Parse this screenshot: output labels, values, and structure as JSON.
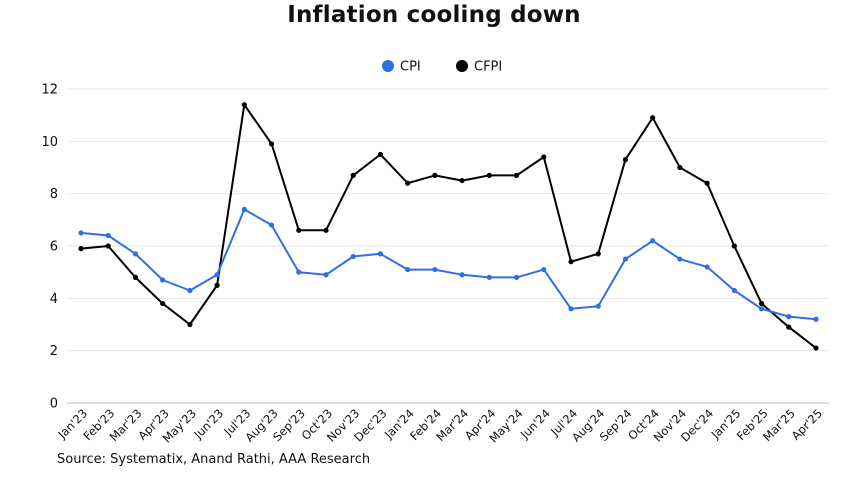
{
  "chart_data": {
    "type": "line",
    "title": "Inflation cooling down",
    "xlabel": "",
    "ylabel": "",
    "ylim": [
      0,
      12
    ],
    "yticks": [
      "0",
      "2",
      "4",
      "6",
      "8",
      "10",
      "12"
    ],
    "grid": true,
    "legend_position": "top-center",
    "categories": [
      "Jan'23",
      "Feb'23",
      "Mar'23",
      "Apr'23",
      "May'23",
      "Jun'23",
      "Jul'23",
      "Aug'23",
      "Sep'23",
      "Oct'23",
      "Nov'23",
      "Dec'23",
      "Jan'24",
      "Feb'24",
      "Mar'24",
      "Apr'24",
      "May'24",
      "Jun'24",
      "Jul'24",
      "Aug'24",
      "Sep'24",
      "Oct'24",
      "Nov'24",
      "Dec'24",
      "Jan'25",
      "Feb'25",
      "Mar'25",
      "Apr'25"
    ],
    "series": [
      {
        "name": "CPI",
        "color": "#2f6fe4",
        "values": [
          6.5,
          6.4,
          5.7,
          4.7,
          4.3,
          4.9,
          7.4,
          6.8,
          5.0,
          4.9,
          5.6,
          5.7,
          5.1,
          5.1,
          4.9,
          4.8,
          4.8,
          5.1,
          3.6,
          3.7,
          5.5,
          6.2,
          5.5,
          5.2,
          4.3,
          3.6,
          3.3,
          3.2
        ]
      },
      {
        "name": "CFPI",
        "color": "#000000",
        "values": [
          5.9,
          6.0,
          4.8,
          3.8,
          3.0,
          4.5,
          11.4,
          9.9,
          6.6,
          6.6,
          8.7,
          9.5,
          8.4,
          8.7,
          8.5,
          8.7,
          8.7,
          9.4,
          5.4,
          5.7,
          9.3,
          10.9,
          9.0,
          8.4,
          6.0,
          3.8,
          2.9,
          2.1
        ]
      }
    ],
    "source": "Source: Systematix, Anand Rathi, AAA Research"
  }
}
